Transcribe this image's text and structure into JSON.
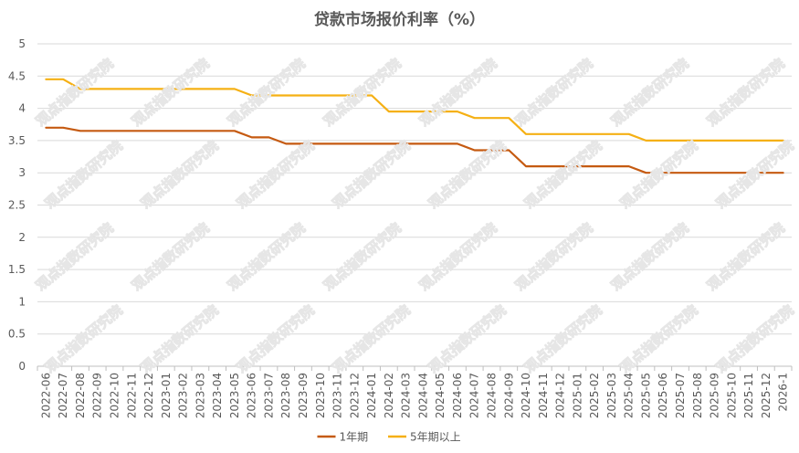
{
  "chart_data": {
    "type": "line",
    "title": "贷款市场报价利率（%）",
    "xlabel": "",
    "ylabel": "",
    "ylim": [
      0,
      5
    ],
    "yticks": [
      "0",
      "0.5",
      "1",
      "1.5",
      "2",
      "2.5",
      "3",
      "3.5",
      "4",
      "4.5",
      "5"
    ],
    "grid": "horizontal",
    "legend_position": "bottom",
    "categories": [
      "2022-06",
      "2022-07",
      "2022-08",
      "2022-09",
      "2022-10",
      "2022-11",
      "2022-12",
      "2023-01",
      "2023-02",
      "2023-03",
      "2023-04",
      "2023-05",
      "2023-06",
      "2023-07",
      "2023-08",
      "2023-09",
      "2023-10",
      "2023-11",
      "2023-12",
      "2024-01",
      "2024-02",
      "2024-03",
      "2024-04",
      "2024-05",
      "2024-06",
      "2024-07",
      "2024-08",
      "2024-09",
      "2024-10",
      "2024-11",
      "2024-12",
      "2025-01",
      "2025-02",
      "2025-03",
      "2025-04",
      "2025-05",
      "2025-06",
      "2025-07",
      "2025-08",
      "2025-09",
      "2025-10",
      "2025-11",
      "2025-12",
      "2026-1"
    ],
    "series": [
      {
        "name": "1年期",
        "color": "#C55A11",
        "values": [
          3.7,
          3.7,
          3.65,
          3.65,
          3.65,
          3.65,
          3.65,
          3.65,
          3.65,
          3.65,
          3.65,
          3.65,
          3.55,
          3.55,
          3.45,
          3.45,
          3.45,
          3.45,
          3.45,
          3.45,
          3.45,
          3.45,
          3.45,
          3.45,
          3.45,
          3.35,
          3.35,
          3.35,
          3.1,
          3.1,
          3.1,
          3.1,
          3.1,
          3.1,
          3.1,
          3.0,
          3.0,
          3.0,
          3.0,
          3.0,
          3.0,
          3.0,
          3.0,
          3.0
        ]
      },
      {
        "name": "5年期以上",
        "color": "#F5B014",
        "values": [
          4.45,
          4.45,
          4.3,
          4.3,
          4.3,
          4.3,
          4.3,
          4.3,
          4.3,
          4.3,
          4.3,
          4.3,
          4.2,
          4.2,
          4.2,
          4.2,
          4.2,
          4.2,
          4.2,
          4.2,
          3.95,
          3.95,
          3.95,
          3.95,
          3.95,
          3.85,
          3.85,
          3.85,
          3.6,
          3.6,
          3.6,
          3.6,
          3.6,
          3.6,
          3.6,
          3.5,
          3.5,
          3.5,
          3.5,
          3.5,
          3.5,
          3.5,
          3.5,
          3.5
        ]
      }
    ]
  },
  "watermark": {
    "text": "观点指数研究院"
  }
}
